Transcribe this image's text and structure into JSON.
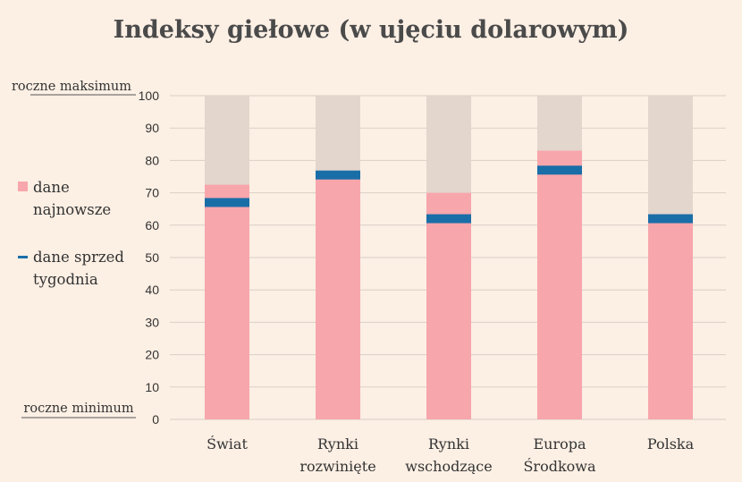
{
  "chart_data": {
    "type": "bar",
    "title": "Indeksy giełowe (w ujęciu dolarowym)",
    "categories": [
      [
        "Świat"
      ],
      [
        "Rynki",
        "rozwinięte"
      ],
      [
        "Rynki",
        "wschodzące"
      ],
      [
        "Europa",
        "Środkowa"
      ],
      [
        "Polska"
      ]
    ],
    "series": [
      {
        "name": "dane najnowsze",
        "values": [
          72.5,
          76,
          70,
          83,
          61
        ]
      },
      {
        "name": "dane sprzed tygodnia",
        "values": [
          67,
          75.5,
          62,
          77,
          62
        ]
      }
    ],
    "ylim": [
      0,
      100
    ],
    "yticks": [
      0,
      10,
      20,
      30,
      40,
      50,
      60,
      70,
      80,
      90,
      100
    ],
    "range_max_label": "roczne maksimum",
    "range_min_label": "roczne minimum",
    "legend": [
      {
        "lines": [
          "dane",
          "najnowsze"
        ],
        "marker": "square",
        "color": "#f7a6ac"
      },
      {
        "lines": [
          "dane sprzed",
          "tygodnia"
        ],
        "marker": "dash",
        "color": "#1a6ea8"
      }
    ],
    "colors": {
      "range": "#e3d6cc",
      "latest": "#f7a6ac",
      "week_ago": "#1a6ea8",
      "grid": "#d9cfc6"
    },
    "grid": true
  }
}
